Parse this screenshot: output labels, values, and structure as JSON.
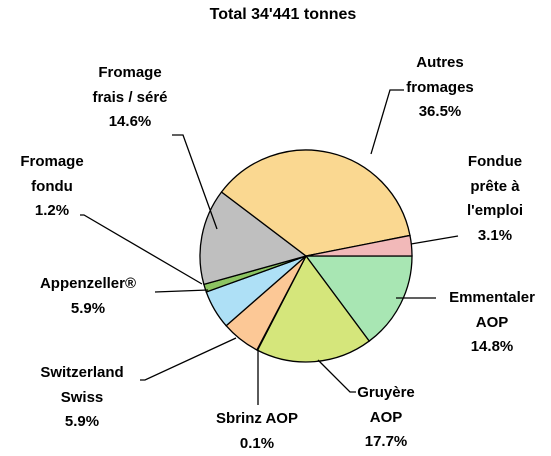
{
  "chart_data": {
    "type": "pie",
    "title": "Total 34'441 tonnes",
    "categories": [
      "Emmentaler\nAOP",
      "Gruyère\nAOP",
      "Sbrinz AOP",
      "Switzerland\nSwiss",
      "Appenzeller®",
      "Fromage\nfondu",
      "Fromage\nfrais / séré",
      "Autres\nfromages",
      "Fondue\nprête à\nl'emploi"
    ],
    "values": [
      14.8,
      17.7,
      0.1,
      5.9,
      5.9,
      1.2,
      14.6,
      36.5,
      3.1
    ],
    "value_labels": [
      "14.8%",
      "17.7%",
      "0.1%",
      "5.9%",
      "5.9%",
      "1.2%",
      "14.6%",
      "36.5%",
      "3.1%"
    ],
    "colors": [
      "#a8e6b3",
      "#d5e67b",
      "#e8d0a0",
      "#fcc896",
      "#aee0f6",
      "#8cc462",
      "#bfbfbf",
      "#fad891",
      "#f2b9b9"
    ]
  }
}
